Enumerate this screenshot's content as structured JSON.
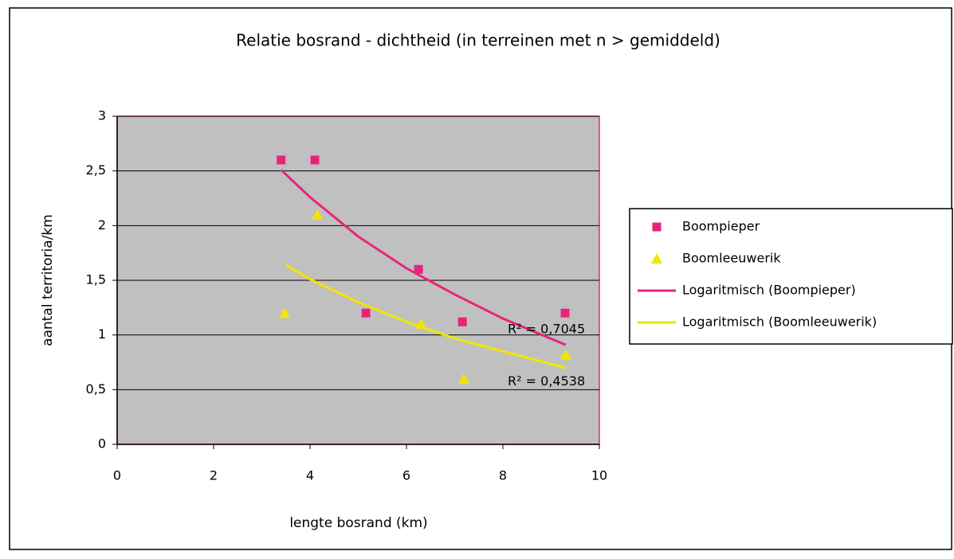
{
  "chart_data": {
    "type": "scatter",
    "title": "Relatie bosrand - dichtheid (in terreinen met n > gemiddeld)",
    "x_label": "lengte bosrand (km)",
    "y_label": "aantal territoria/km",
    "xlim": [
      0,
      10
    ],
    "xticks": [
      0,
      2,
      4,
      6,
      8,
      10
    ],
    "ylim": [
      0,
      3
    ],
    "yticks": [
      0,
      {
        "value": 0.5,
        "label": "0,5"
      },
      1,
      {
        "value": 1.5,
        "label": "1,5"
      },
      2,
      {
        "value": 2.5,
        "label": "2,5"
      },
      3
    ],
    "grid": true,
    "legend": "right",
    "series": [
      {
        "name": "Boompieper",
        "color": "#e8247a",
        "mode": "markers",
        "marker": "square",
        "x": [
          3.4,
          4.1,
          5.16,
          6.25,
          7.16,
          9.29
        ],
        "values": [
          2.6,
          2.6,
          1.2,
          1.6,
          1.12,
          1.2
        ]
      },
      {
        "name": "Boomleeuwerik",
        "color": "#f2e600",
        "mode": "markers",
        "marker": "triangle",
        "x": [
          3.47,
          4.15,
          6.3,
          7.19,
          9.3
        ],
        "values": [
          1.2,
          2.1,
          1.1,
          0.6,
          0.82
        ]
      },
      {
        "name": "Logaritmisch (Boompieper)",
        "color": "#e8247a",
        "mode": "line",
        "x": [
          3.4,
          4,
          5,
          6,
          7,
          8,
          9.3
        ],
        "values": [
          2.51,
          2.26,
          1.9,
          1.61,
          1.37,
          1.15,
          0.91
        ]
      },
      {
        "name": "Logaritmisch (Boomleeuwerik)",
        "color": "#f2e600",
        "mode": "line",
        "x": [
          3.5,
          4,
          5,
          6,
          7,
          8,
          9.3
        ],
        "values": [
          1.64,
          1.51,
          1.3,
          1.12,
          0.97,
          0.85,
          0.7
        ]
      }
    ],
    "annotations": [
      {
        "text": "R² = 0,7045",
        "x": 8.1,
        "y": 1.05
      },
      {
        "text": "R² = 0,4538",
        "x": 8.1,
        "y": 0.57
      }
    ]
  }
}
